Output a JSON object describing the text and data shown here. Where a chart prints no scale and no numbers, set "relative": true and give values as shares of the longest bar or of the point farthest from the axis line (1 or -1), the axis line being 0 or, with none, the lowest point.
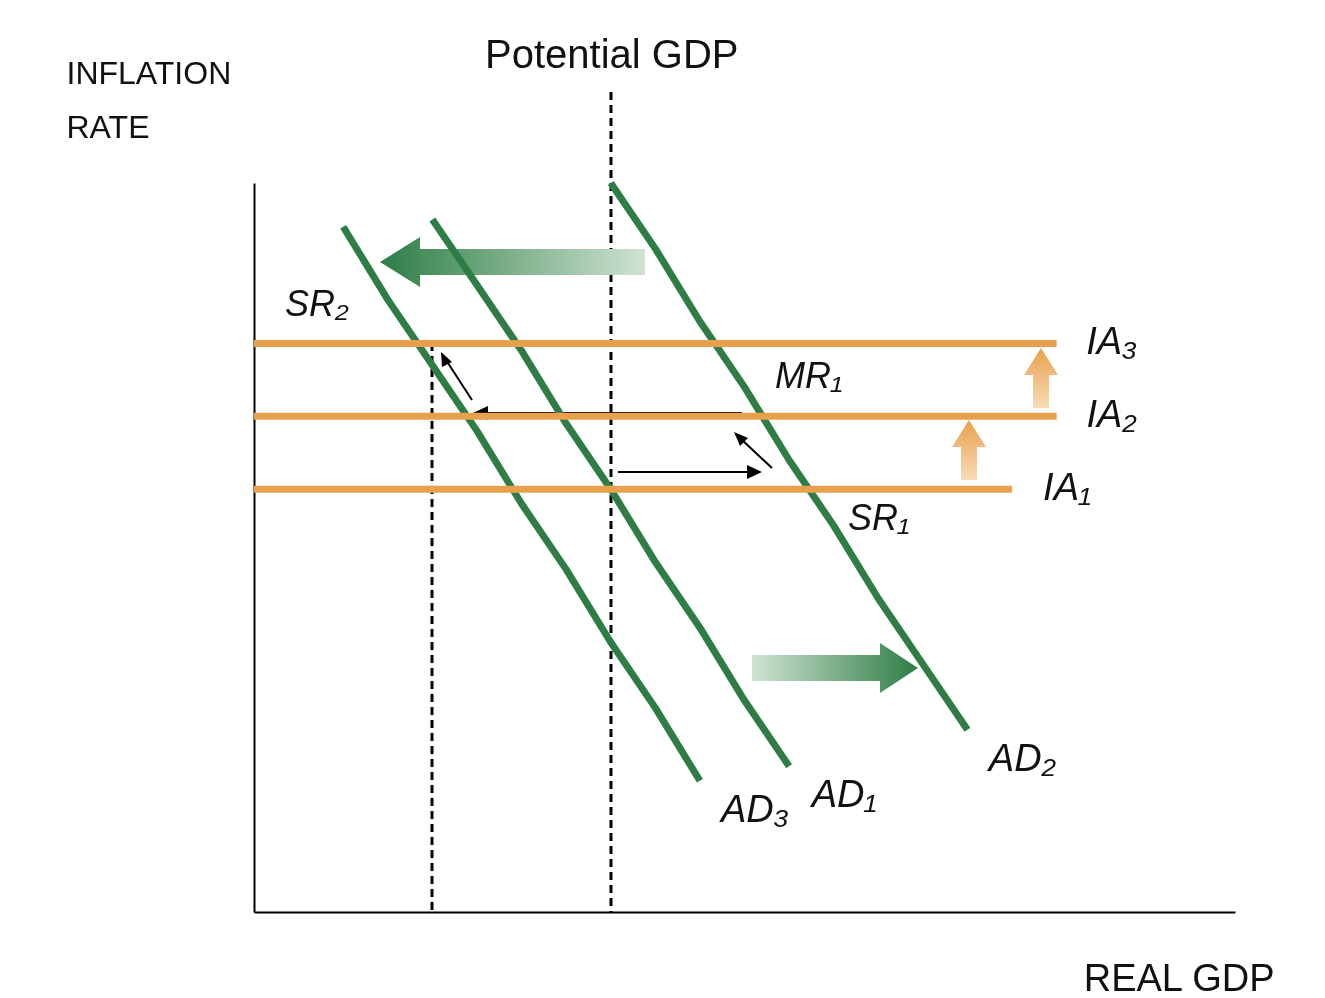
{
  "chart_data": {
    "type": "line",
    "relative": true,
    "tick_labels": false,
    "title": null,
    "xlabel": "REAL GDP",
    "ylabel": "INFLATION RATE",
    "categories": [
      null,
      null,
      null,
      null,
      null,
      null,
      null,
      null,
      null,
      null,
      null,
      null,
      null,
      null,
      null,
      null,
      null,
      null,
      null,
      null,
      null,
      null,
      null
    ],
    "series": [
      {
        "name": "AD₁",
        "color": "#2e7d45",
        "values": [
          null,
          null,
          null,
          null,
          0.95,
          0.86,
          0.77,
          0.67,
          0.58,
          0.48,
          0.39,
          0.29,
          0.2,
          null,
          null,
          null,
          null,
          null,
          null,
          null,
          null,
          null,
          null
        ]
      },
      {
        "name": "AD₂",
        "color": "#2e7d45",
        "values": [
          null,
          null,
          null,
          null,
          null,
          null,
          null,
          null,
          1,
          0.91,
          0.81,
          0.72,
          0.62,
          0.53,
          0.43,
          0.34,
          0.25,
          null,
          null,
          null,
          null,
          null,
          null
        ]
      },
      {
        "name": "AD₃",
        "color": "#2e7d45",
        "values": [
          null,
          null,
          0.94,
          0.84,
          0.75,
          0.66,
          0.56,
          0.47,
          0.37,
          0.28,
          0.18,
          null,
          null,
          null,
          null,
          null,
          null,
          null,
          null,
          null,
          null,
          null,
          null
        ]
      },
      {
        "name": "IA₁",
        "color": "#e9a04c",
        "values": [
          0.58,
          0.58,
          0.58,
          0.58,
          0.58,
          0.58,
          0.58,
          0.58,
          0.58,
          0.58,
          0.58,
          0.58,
          0.58,
          0.58,
          0.58,
          0.58,
          0.58,
          0.58,
          null,
          null,
          null,
          null,
          null
        ]
      },
      {
        "name": "IA₂",
        "color": "#e9a04c",
        "values": [
          0.68,
          0.68,
          0.68,
          0.68,
          0.68,
          0.68,
          0.68,
          0.68,
          0.68,
          0.68,
          0.68,
          0.68,
          0.68,
          0.68,
          0.68,
          0.68,
          0.68,
          0.68,
          0.68,
          null,
          null,
          null,
          null
        ]
      },
      {
        "name": "IA₃",
        "color": "#e9a04c",
        "values": [
          0.78,
          0.78,
          0.78,
          0.78,
          0.78,
          0.78,
          0.78,
          0.78,
          0.78,
          0.78,
          0.78,
          0.78,
          0.78,
          0.78,
          0.78,
          0.78,
          0.78,
          0.78,
          0.78,
          null,
          null,
          null,
          null
        ]
      }
    ],
    "annotations": [
      "Potential GDP",
      "SR₂",
      "MR₁",
      "SR₁"
    ]
  }
}
